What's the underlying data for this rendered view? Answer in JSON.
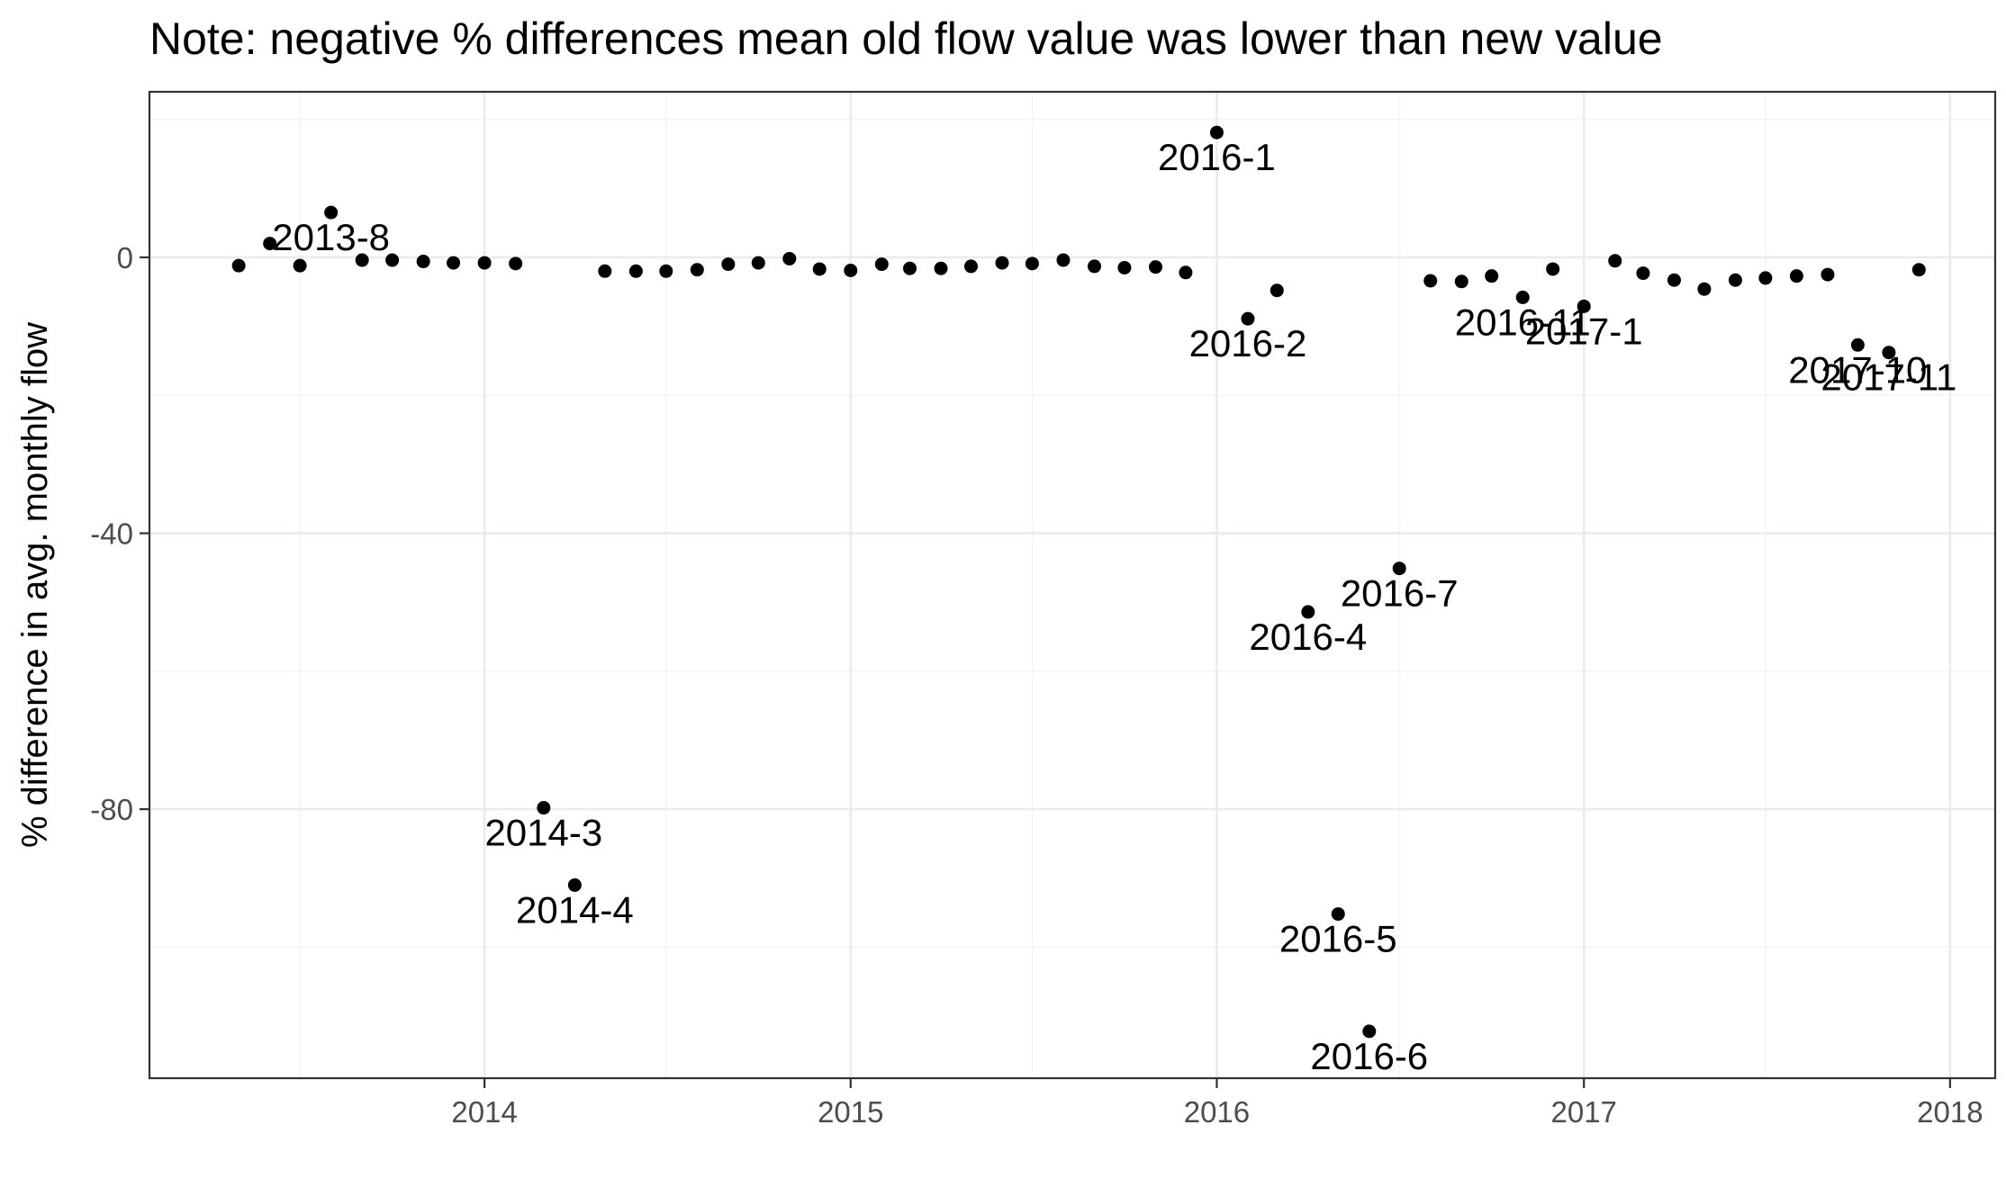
{
  "chart_data": {
    "type": "scatter",
    "title": "Note: negative % differences mean old flow value was lower than new value",
    "xlabel": "",
    "ylabel": "% difference in avg. monthly flow",
    "xlim": [
      "2013-02-01",
      "2018-02-15"
    ],
    "ylim": [
      -119,
      24
    ],
    "x_ticks": [
      {
        "date": "2014-01-01",
        "label": "2014"
      },
      {
        "date": "2015-01-01",
        "label": "2015"
      },
      {
        "date": "2016-01-01",
        "label": "2016"
      },
      {
        "date": "2017-01-01",
        "label": "2017"
      },
      {
        "date": "2018-01-01",
        "label": "2018"
      }
    ],
    "y_ticks": [
      {
        "value": 0,
        "label": "0"
      },
      {
        "value": -40,
        "label": "-40"
      },
      {
        "value": -80,
        "label": "-80"
      }
    ],
    "grid": true,
    "points": [
      {
        "x": "2013-05-01",
        "y": -1.2
      },
      {
        "x": "2013-06-01",
        "y": 2.0
      },
      {
        "x": "2013-07-01",
        "y": -1.2
      },
      {
        "x": "2013-08-01",
        "y": 6.5,
        "label": "2013-8"
      },
      {
        "x": "2013-09-01",
        "y": -0.4
      },
      {
        "x": "2013-10-01",
        "y": -0.4
      },
      {
        "x": "2013-11-01",
        "y": -0.6
      },
      {
        "x": "2013-12-01",
        "y": -0.8
      },
      {
        "x": "2014-01-01",
        "y": -0.8
      },
      {
        "x": "2014-02-01",
        "y": -0.9
      },
      {
        "x": "2014-03-01",
        "y": -79.8,
        "label": "2014-3"
      },
      {
        "x": "2014-04-01",
        "y": -91.0,
        "label": "2014-4"
      },
      {
        "x": "2014-05-01",
        "y": -2.0
      },
      {
        "x": "2014-06-01",
        "y": -2.0
      },
      {
        "x": "2014-07-01",
        "y": -2.0
      },
      {
        "x": "2014-08-01",
        "y": -1.8
      },
      {
        "x": "2014-09-01",
        "y": -1.0
      },
      {
        "x": "2014-10-01",
        "y": -0.8
      },
      {
        "x": "2014-11-01",
        "y": -0.2
      },
      {
        "x": "2014-12-01",
        "y": -1.7
      },
      {
        "x": "2015-01-01",
        "y": -1.9
      },
      {
        "x": "2015-02-01",
        "y": -1.0
      },
      {
        "x": "2015-03-01",
        "y": -1.6
      },
      {
        "x": "2015-04-01",
        "y": -1.6
      },
      {
        "x": "2015-05-01",
        "y": -1.3
      },
      {
        "x": "2015-06-01",
        "y": -0.8
      },
      {
        "x": "2015-07-01",
        "y": -0.9
      },
      {
        "x": "2015-08-01",
        "y": -0.4
      },
      {
        "x": "2015-09-01",
        "y": -1.3
      },
      {
        "x": "2015-10-01",
        "y": -1.5
      },
      {
        "x": "2015-11-01",
        "y": -1.4
      },
      {
        "x": "2015-12-01",
        "y": -2.2
      },
      {
        "x": "2016-01-01",
        "y": 18.1,
        "label": "2016-1"
      },
      {
        "x": "2016-02-01",
        "y": -8.9,
        "label": "2016-2"
      },
      {
        "x": "2016-03-01",
        "y": -4.8
      },
      {
        "x": "2016-04-01",
        "y": -51.4,
        "label": "2016-4"
      },
      {
        "x": "2016-05-01",
        "y": -95.2,
        "label": "2016-5"
      },
      {
        "x": "2016-06-01",
        "y": -112.2,
        "label": "2016-6"
      },
      {
        "x": "2016-07-01",
        "y": -45.1,
        "label": "2016-7"
      },
      {
        "x": "2016-08-01",
        "y": -3.4
      },
      {
        "x": "2016-09-01",
        "y": -3.5
      },
      {
        "x": "2016-10-01",
        "y": -2.7
      },
      {
        "x": "2016-11-01",
        "y": -5.8,
        "label": "2016-11"
      },
      {
        "x": "2016-12-01",
        "y": -1.7
      },
      {
        "x": "2017-01-01",
        "y": -7.1,
        "label": "2017-1"
      },
      {
        "x": "2017-02-01",
        "y": -0.5
      },
      {
        "x": "2017-03-01",
        "y": -2.3
      },
      {
        "x": "2017-04-01",
        "y": -3.3
      },
      {
        "x": "2017-05-01",
        "y": -4.6
      },
      {
        "x": "2017-06-01",
        "y": -3.3
      },
      {
        "x": "2017-07-01",
        "y": -3.0
      },
      {
        "x": "2017-08-01",
        "y": -2.7
      },
      {
        "x": "2017-09-01",
        "y": -2.5
      },
      {
        "x": "2017-10-01",
        "y": -12.7,
        "label": "2017-10"
      },
      {
        "x": "2017-11-01",
        "y": -13.8,
        "label": "2017-11"
      },
      {
        "x": "2017-12-01",
        "y": -1.8
      }
    ]
  }
}
